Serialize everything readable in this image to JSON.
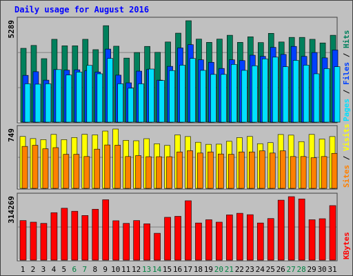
{
  "title": "Daily usage for August 2016",
  "colors": {
    "background": "#c0c0c0",
    "title": "#0000ff",
    "hits": "#00805c",
    "files": "#0040ff",
    "pages": "#00e0ff",
    "visits": "#ffff00",
    "sites": "#ff8000",
    "kbytes": "#ff0000",
    "weekend_label": "#008040",
    "weekday_label": "#000000"
  },
  "chart_data": [
    {
      "type": "bar",
      "panel": "hits-files-pages",
      "max_label": "5289",
      "ylim": [
        0,
        5289
      ],
      "categories": [
        "1",
        "2",
        "3",
        "4",
        "5",
        "6",
        "7",
        "8",
        "9",
        "10",
        "11",
        "12",
        "13",
        "14",
        "15",
        "16",
        "17",
        "18",
        "19",
        "20",
        "21",
        "22",
        "23",
        "24",
        "25",
        "26",
        "27",
        "28",
        "29",
        "30",
        "31"
      ],
      "weekend_days": [
        6,
        7,
        13,
        14,
        20,
        21,
        27,
        28
      ],
      "legend": [
        "Pages",
        "Files",
        "Hits"
      ],
      "series": [
        {
          "name": "Hits",
          "color": "#00805c",
          "values": [
            3850,
            4000,
            3310,
            4320,
            3980,
            3980,
            4320,
            3780,
            5030,
            3960,
            3340,
            3630,
            3950,
            3640,
            4180,
            4640,
            5289,
            4330,
            4160,
            4330,
            4530,
            4160,
            4450,
            4150,
            4630,
            4180,
            4420,
            4420,
            4320,
            4130,
            4530
          ]
        },
        {
          "name": "Files",
          "color": "#0040ff",
          "values": [
            2440,
            2630,
            2190,
            2740,
            2710,
            2730,
            2690,
            2610,
            3810,
            2450,
            2050,
            2660,
            2750,
            2190,
            2910,
            3870,
            4040,
            3250,
            3120,
            2800,
            3250,
            3210,
            3490,
            3430,
            3900,
            3530,
            3950,
            3430,
            3630,
            3350,
            3760
          ]
        },
        {
          "name": "Pages",
          "color": "#00e0ff",
          "values": [
            2000,
            1980,
            2000,
            2740,
            2460,
            2610,
            2960,
            2520,
            3320,
            2000,
            1770,
            2000,
            2770,
            2170,
            2690,
            2970,
            3320,
            2700,
            2490,
            2490,
            3010,
            2700,
            2940,
            3300,
            3390,
            2890,
            3220,
            2970,
            2520,
            2790,
            2890
          ]
        }
      ]
    },
    {
      "type": "bar",
      "panel": "visits-sites",
      "max_label": "749",
      "ylim": [
        0,
        749
      ],
      "categories": [
        "1",
        "2",
        "3",
        "4",
        "5",
        "6",
        "7",
        "8",
        "9",
        "10",
        "11",
        "12",
        "13",
        "14",
        "15",
        "16",
        "17",
        "18",
        "19",
        "20",
        "21",
        "22",
        "23",
        "24",
        "25",
        "26",
        "27",
        "28",
        "29",
        "30",
        "31"
      ],
      "weekend_days": [
        6,
        7,
        13,
        14,
        20,
        21,
        27,
        28
      ],
      "legend": [
        "Sites",
        "Visits"
      ],
      "series": [
        {
          "name": "Visits",
          "color": "#ffff00",
          "values": [
            655,
            628,
            615,
            681,
            615,
            642,
            682,
            675,
            723,
            749,
            606,
            601,
            627,
            563,
            542,
            675,
            654,
            582,
            556,
            558,
            594,
            641,
            655,
            564,
            577,
            680,
            672,
            590,
            681,
            623,
            654
          ]
        },
        {
          "name": "Sites",
          "color": "#ff8000",
          "values": [
            530,
            544,
            500,
            514,
            430,
            430,
            402,
            495,
            548,
            545,
            402,
            414,
            400,
            400,
            400,
            460,
            476,
            446,
            460,
            434,
            430,
            460,
            460,
            474,
            446,
            474,
            402,
            402,
            387,
            402,
            442
          ]
        }
      ]
    },
    {
      "type": "bar",
      "panel": "kbytes",
      "max_label": "314269",
      "ylim": [
        0,
        314269
      ],
      "categories": [
        "1",
        "2",
        "3",
        "4",
        "5",
        "6",
        "7",
        "8",
        "9",
        "10",
        "11",
        "12",
        "13",
        "14",
        "15",
        "16",
        "17",
        "18",
        "19",
        "20",
        "21",
        "22",
        "23",
        "24",
        "25",
        "26",
        "27",
        "28",
        "29",
        "30",
        "31"
      ],
      "weekend_days": [
        6,
        7,
        13,
        14,
        20,
        21,
        27,
        28
      ],
      "legend": [
        "KBytes"
      ],
      "series": [
        {
          "name": "KBytes",
          "color": "#ff0000",
          "values": [
            196000,
            188000,
            182000,
            235000,
            257000,
            242000,
            221000,
            252000,
            299000,
            195000,
            182000,
            196000,
            180000,
            133000,
            212000,
            217000,
            294000,
            184000,
            200000,
            188000,
            224000,
            232000,
            225000,
            184000,
            206000,
            297000,
            314269,
            303000,
            200000,
            205000,
            270000
          ]
        }
      ]
    }
  ]
}
